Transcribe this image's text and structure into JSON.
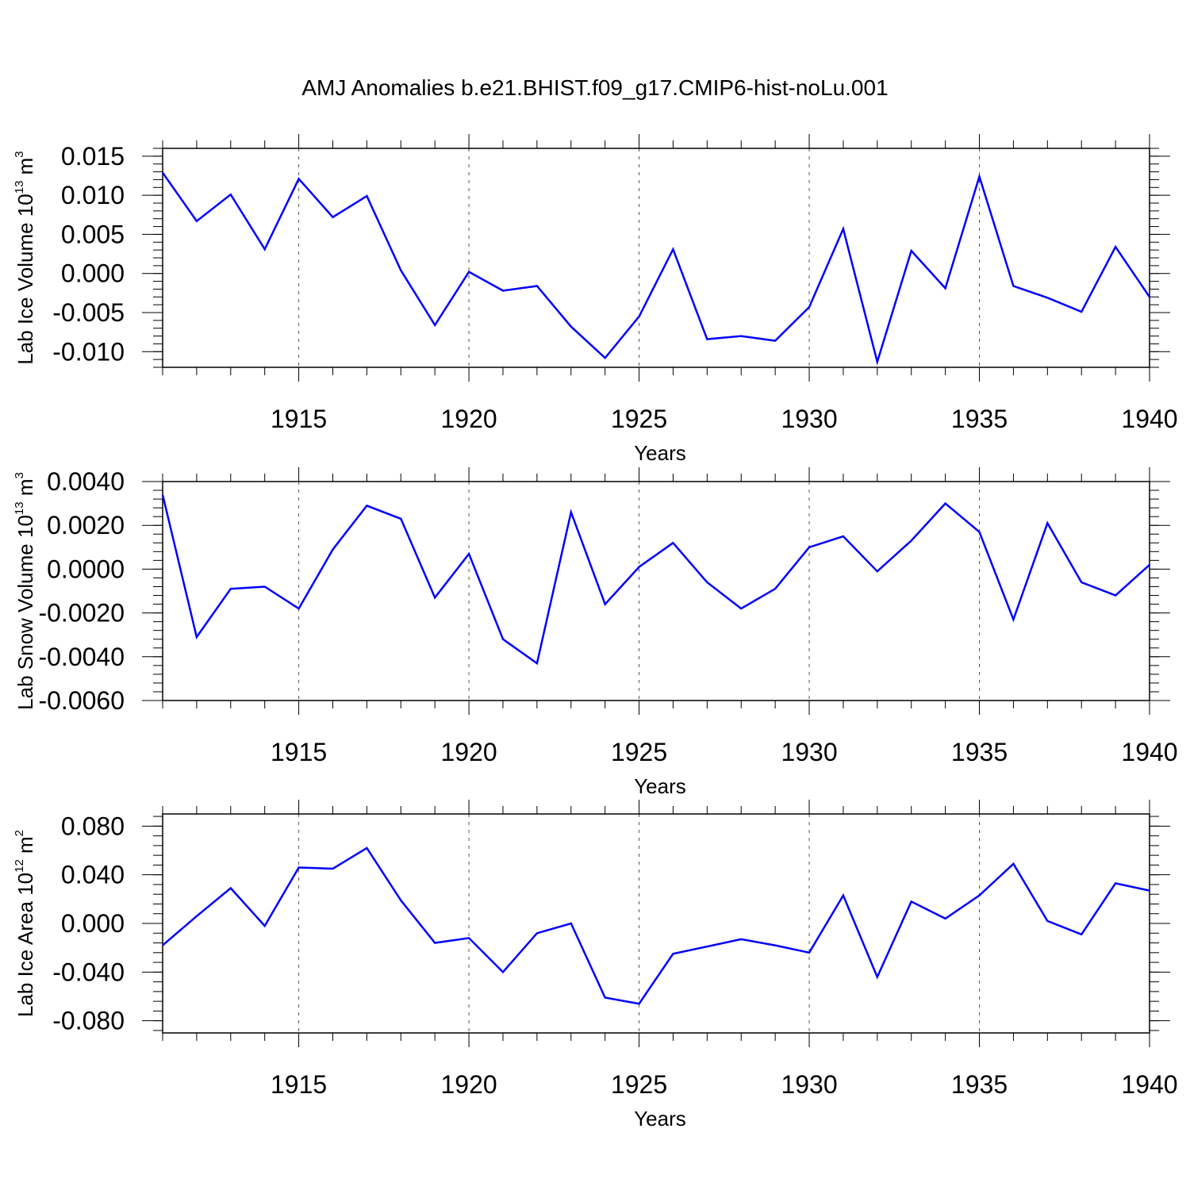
{
  "title": "AMJ Anomalies b.e21.BHIST.f09_g17.CMIP6-hist-noLu.001",
  "colors": {
    "line": "#0000ff",
    "axis": "#000000",
    "grid": "#555555"
  },
  "chart_data": [
    {
      "type": "line",
      "name": "lab-ice-volume",
      "ylabel": {
        "pre": "Lab Ice Volume 10",
        "exp": "13",
        "unit": " m",
        "unit_exp": "3"
      },
      "xlabel": "Years",
      "xlim": [
        1911,
        1940
      ],
      "ylim": [
        -0.012,
        0.016
      ],
      "yticks": [
        0.015,
        0.01,
        0.005,
        0.0,
        -0.005,
        -0.01
      ],
      "ytick_labels": [
        "0.015",
        "0.010",
        "0.005",
        "0.000",
        "-0.005",
        "-0.010"
      ],
      "yminor": 0.001,
      "xticks": [
        1915,
        1920,
        1925,
        1930,
        1935,
        1940
      ],
      "xtick_labels": [
        "1915",
        "1920",
        "1925",
        "1930",
        "1935",
        "1940"
      ],
      "x": [
        1911,
        1912,
        1913,
        1914,
        1915,
        1916,
        1917,
        1918,
        1919,
        1920,
        1921,
        1922,
        1923,
        1924,
        1925,
        1926,
        1927,
        1928,
        1929,
        1930,
        1931,
        1932,
        1933,
        1934,
        1935,
        1936,
        1937,
        1938,
        1939,
        1940
      ],
      "values": [
        0.0129,
        0.0067,
        0.0101,
        0.0031,
        0.0121,
        0.0072,
        0.0099,
        0.0004,
        -0.0066,
        0.0002,
        -0.0022,
        -0.0016,
        -0.0068,
        -0.0108,
        -0.0055,
        0.0031,
        -0.0084,
        -0.008,
        -0.0086,
        -0.0043,
        0.0057,
        -0.0113,
        0.0029,
        -0.0019,
        0.0124,
        -0.0016,
        -0.0031,
        -0.0049,
        0.0034,
        -0.003
      ]
    },
    {
      "type": "line",
      "name": "lab-snow-volume",
      "ylabel": {
        "pre": "Lab Snow Volume 10",
        "exp": "13",
        "unit": " m",
        "unit_exp": "3"
      },
      "xlabel": "Years",
      "xlim": [
        1911,
        1940
      ],
      "ylim": [
        -0.006,
        0.004
      ],
      "yticks": [
        0.004,
        0.002,
        0.0,
        -0.002,
        -0.004,
        -0.006
      ],
      "ytick_labels": [
        "0.0040",
        "0.0020",
        "0.0000",
        "-0.0020",
        "-0.0040",
        "-0.0060"
      ],
      "yminor": 0.0004,
      "xticks": [
        1915,
        1920,
        1925,
        1930,
        1935,
        1940
      ],
      "xtick_labels": [
        "1915",
        "1920",
        "1925",
        "1930",
        "1935",
        "1940"
      ],
      "x": [
        1911,
        1912,
        1913,
        1914,
        1915,
        1916,
        1917,
        1918,
        1919,
        1920,
        1921,
        1922,
        1923,
        1924,
        1925,
        1926,
        1927,
        1928,
        1929,
        1930,
        1931,
        1932,
        1933,
        1934,
        1935,
        1936,
        1937,
        1938,
        1939,
        1940
      ],
      "values": [
        0.0034,
        -0.0031,
        -0.0009,
        -0.0008,
        -0.0018,
        0.0009,
        0.0029,
        0.0023,
        -0.0013,
        0.0007,
        -0.0032,
        -0.0043,
        0.0026,
        -0.0016,
        0.0001,
        0.0012,
        -0.0006,
        -0.0018,
        -0.0009,
        0.001,
        0.0015,
        -0.0001,
        0.0013,
        0.003,
        0.0017,
        -0.0023,
        0.0021,
        -0.0006,
        -0.0012,
        0.0002
      ]
    },
    {
      "type": "line",
      "name": "lab-ice-area",
      "ylabel": {
        "pre": "Lab Ice Area 10",
        "exp": "12",
        "unit": " m",
        "unit_exp": "2"
      },
      "xlabel": "Years",
      "xlim": [
        1911,
        1940
      ],
      "ylim": [
        -0.09,
        0.09
      ],
      "yticks": [
        0.08,
        0.04,
        0.0,
        -0.04,
        -0.08
      ],
      "ytick_labels": [
        "0.080",
        "0.040",
        "0.000",
        "-0.040",
        "-0.080"
      ],
      "yminor": 0.008,
      "xticks": [
        1915,
        1920,
        1925,
        1930,
        1935,
        1940
      ],
      "xtick_labels": [
        "1915",
        "1920",
        "1925",
        "1930",
        "1935",
        "1940"
      ],
      "x": [
        1911,
        1912,
        1913,
        1914,
        1915,
        1916,
        1917,
        1918,
        1919,
        1920,
        1921,
        1922,
        1923,
        1924,
        1925,
        1926,
        1927,
        1928,
        1929,
        1930,
        1931,
        1932,
        1933,
        1934,
        1935,
        1936,
        1937,
        1938,
        1939,
        1940
      ],
      "values": [
        -0.018,
        0.006,
        0.029,
        -0.002,
        0.046,
        0.045,
        0.062,
        0.019,
        -0.016,
        -0.012,
        -0.04,
        -0.008,
        0.0,
        -0.061,
        -0.066,
        -0.025,
        -0.019,
        -0.013,
        -0.018,
        -0.024,
        0.023,
        -0.044,
        0.018,
        0.004,
        0.023,
        0.049,
        0.002,
        -0.009,
        0.033,
        0.027
      ]
    }
  ]
}
